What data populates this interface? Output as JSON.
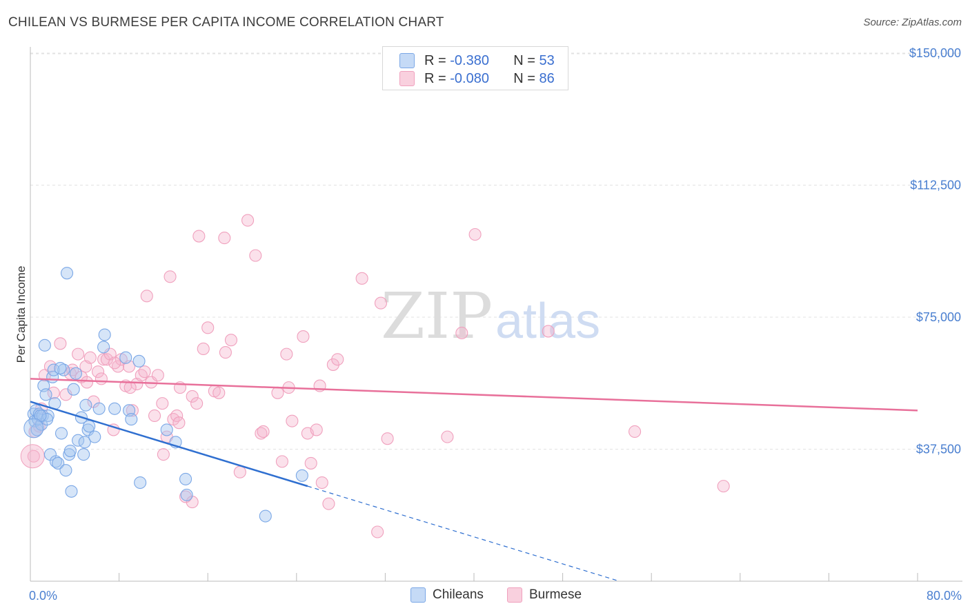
{
  "title": "CHILEAN VS BURMESE PER CAPITA INCOME CORRELATION CHART",
  "source": "Source: ZipAtlas.com",
  "watermark": {
    "zip": "ZIP",
    "atlas": "atlas"
  },
  "legend": {
    "rows": [
      {
        "r_label": "R =",
        "r_value": "-0.380",
        "n_label": "N =",
        "n_value": "53",
        "color": "#7aa7e6"
      },
      {
        "r_label": "R =",
        "r_value": "-0.080",
        "n_label": "N =",
        "n_value": "86",
        "color": "#f0a0bd"
      }
    ]
  },
  "bottom_legend": {
    "chileans": "Chileans",
    "burmese": "Burmese"
  },
  "chart_data": {
    "type": "scatter",
    "title": "CHILEAN VS BURMESE PER CAPITA INCOME CORRELATION CHART",
    "xlabel": "",
    "ylabel": "Per Capita Income",
    "xlim": [
      0,
      80
    ],
    "ylim": [
      0,
      153000
    ],
    "x_tick_labels": [
      "0.0%",
      "80.0%"
    ],
    "y_ticks": [
      37500,
      75000,
      112500,
      150000
    ],
    "y_tick_labels": [
      "$37,500",
      "$75,000",
      "$112,500",
      "$150,000"
    ],
    "series": [
      {
        "name": "Chileans",
        "color": "#7aa7e6",
        "line_color": "#2f6fd0",
        "trend": {
          "x0": 0,
          "y0": 51000,
          "x1": 25,
          "y1": 27000,
          "dash_to_x": 53
        },
        "points": [
          [
            0.3,
            47500
          ],
          [
            0.4,
            45500
          ],
          [
            0.5,
            48500
          ],
          [
            0.6,
            43000
          ],
          [
            0.7,
            46000
          ],
          [
            0.8,
            47500
          ],
          [
            1.0,
            44500
          ],
          [
            1.1,
            47000
          ],
          [
            1.2,
            55500
          ],
          [
            1.3,
            67000
          ],
          [
            1.4,
            53000
          ],
          [
            1.6,
            47000
          ],
          [
            1.8,
            36000
          ],
          [
            2.0,
            58000
          ],
          [
            2.1,
            60000
          ],
          [
            2.2,
            50500
          ],
          [
            2.3,
            34000
          ],
          [
            2.5,
            33500
          ],
          [
            2.8,
            42000
          ],
          [
            3.0,
            60000
          ],
          [
            3.2,
            31500
          ],
          [
            3.3,
            87500
          ],
          [
            3.5,
            36000
          ],
          [
            3.6,
            37000
          ],
          [
            3.7,
            25500
          ],
          [
            3.9,
            54500
          ],
          [
            4.1,
            59000
          ],
          [
            4.3,
            40000
          ],
          [
            4.6,
            46500
          ],
          [
            4.8,
            36000
          ],
          [
            4.9,
            39500
          ],
          [
            5.0,
            50000
          ],
          [
            5.2,
            43000
          ],
          [
            5.3,
            44000
          ],
          [
            5.8,
            41000
          ],
          [
            6.2,
            49000
          ],
          [
            6.6,
            66500
          ],
          [
            6.7,
            70000
          ],
          [
            7.6,
            49000
          ],
          [
            8.6,
            63500
          ],
          [
            8.9,
            48500
          ],
          [
            9.1,
            46000
          ],
          [
            9.9,
            28000
          ],
          [
            9.8,
            62500
          ],
          [
            12.3,
            43000
          ],
          [
            13.1,
            39500
          ],
          [
            14.0,
            29000
          ],
          [
            14.1,
            24500
          ],
          [
            21.2,
            18500
          ],
          [
            24.5,
            30000
          ],
          [
            1.5,
            46000
          ],
          [
            2.7,
            60500
          ],
          [
            0.9,
            47000
          ]
        ]
      },
      {
        "name": "Burmese",
        "color": "#f0a0bd",
        "line_color": "#e8709a",
        "trend": {
          "x0": 0,
          "y0": 57500,
          "x1": 80,
          "y1": 48500
        },
        "points": [
          [
            0.3,
            35500
          ],
          [
            0.4,
            42500
          ],
          [
            0.8,
            44000
          ],
          [
            1.0,
            49000
          ],
          [
            1.3,
            58500
          ],
          [
            1.8,
            61000
          ],
          [
            2.1,
            53500
          ],
          [
            2.7,
            67500
          ],
          [
            3.2,
            53000
          ],
          [
            3.6,
            59000
          ],
          [
            3.8,
            60000
          ],
          [
            4.3,
            64500
          ],
          [
            4.6,
            58000
          ],
          [
            5.0,
            61000
          ],
          [
            5.1,
            56500
          ],
          [
            5.4,
            63500
          ],
          [
            5.7,
            51000
          ],
          [
            6.1,
            59500
          ],
          [
            6.4,
            57500
          ],
          [
            6.6,
            63000
          ],
          [
            6.9,
            63000
          ],
          [
            7.2,
            64500
          ],
          [
            7.5,
            43000
          ],
          [
            7.9,
            61000
          ],
          [
            8.2,
            63000
          ],
          [
            8.6,
            55500
          ],
          [
            8.9,
            61000
          ],
          [
            9.2,
            48500
          ],
          [
            9.6,
            56000
          ],
          [
            10.0,
            58500
          ],
          [
            10.3,
            59500
          ],
          [
            10.5,
            81000
          ],
          [
            10.9,
            56500
          ],
          [
            11.2,
            47000
          ],
          [
            11.5,
            58500
          ],
          [
            11.9,
            50500
          ],
          [
            12.3,
            41000
          ],
          [
            12.6,
            86500
          ],
          [
            12.9,
            46000
          ],
          [
            13.2,
            47000
          ],
          [
            13.5,
            55000
          ],
          [
            14.0,
            24000
          ],
          [
            14.6,
            22500
          ],
          [
            14.6,
            52500
          ],
          [
            15.0,
            50500
          ],
          [
            15.2,
            98000
          ],
          [
            15.6,
            66000
          ],
          [
            16.0,
            72000
          ],
          [
            16.6,
            54000
          ],
          [
            17.0,
            53500
          ],
          [
            17.5,
            97500
          ],
          [
            17.6,
            65000
          ],
          [
            18.1,
            68500
          ],
          [
            18.9,
            31000
          ],
          [
            19.6,
            102500
          ],
          [
            20.3,
            92500
          ],
          [
            20.8,
            42000
          ],
          [
            21.0,
            42500
          ],
          [
            22.3,
            53500
          ],
          [
            22.7,
            34000
          ],
          [
            23.1,
            64500
          ],
          [
            23.3,
            55000
          ],
          [
            23.6,
            45500
          ],
          [
            24.6,
            69500
          ],
          [
            25.0,
            42000
          ],
          [
            25.3,
            33500
          ],
          [
            25.8,
            43000
          ],
          [
            26.1,
            55500
          ],
          [
            26.3,
            28000
          ],
          [
            26.9,
            22000
          ],
          [
            27.3,
            61500
          ],
          [
            27.7,
            63000
          ],
          [
            29.9,
            86000
          ],
          [
            31.3,
            14000
          ],
          [
            31.6,
            79000
          ],
          [
            32.2,
            40500
          ],
          [
            37.6,
            41000
          ],
          [
            38.9,
            70500
          ],
          [
            40.1,
            98500
          ],
          [
            46.7,
            71000
          ],
          [
            54.5,
            42500
          ],
          [
            62.5,
            27000
          ],
          [
            7.6,
            62000
          ],
          [
            12.0,
            36000
          ],
          [
            13.4,
            45000
          ],
          [
            9.0,
            55000
          ]
        ]
      }
    ]
  }
}
